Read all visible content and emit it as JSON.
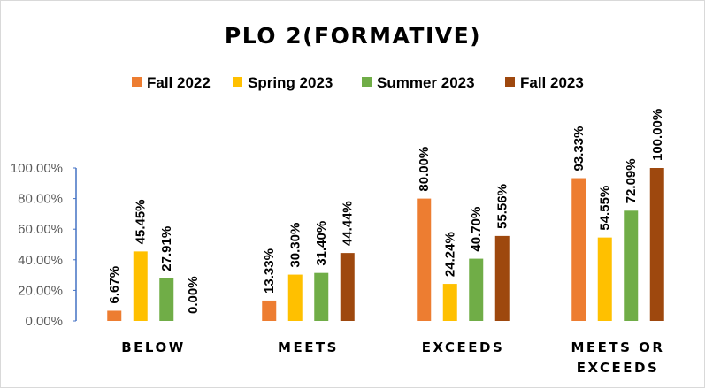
{
  "chart_data": {
    "type": "bar",
    "title": "PLO 2(FORMATIVE)",
    "categories": [
      [
        "BELOW"
      ],
      [
        "MEETS"
      ],
      [
        "EXCEEDS"
      ],
      [
        "MEETS OR",
        "EXCEEDS"
      ]
    ],
    "series": [
      {
        "name": "Fall 2022",
        "color": "#ED7D31",
        "values": [
          6.67,
          13.33,
          80.0,
          93.33
        ],
        "labels": [
          "6.67%",
          "13.33%",
          "80.00%",
          "93.33%"
        ]
      },
      {
        "name": "Spring 2023",
        "color": "#FFC000",
        "values": [
          45.45,
          30.3,
          24.24,
          54.55
        ],
        "labels": [
          "45.45%",
          "30.30%",
          "24.24%",
          "54.55%"
        ]
      },
      {
        "name": "Summer 2023",
        "color": "#70AD47",
        "values": [
          27.91,
          31.4,
          40.7,
          72.09
        ],
        "labels": [
          "27.91%",
          "31.40%",
          "40.70%",
          "72.09%"
        ]
      },
      {
        "name": "Fall 2023",
        "color": "#9E480E",
        "values": [
          0.0,
          44.44,
          55.56,
          100.0
        ],
        "labels": [
          "0.00%",
          "44.44%",
          "55.56%",
          "100.00%"
        ]
      }
    ],
    "yticks": [
      "0.00%",
      "20.00%",
      "40.00%",
      "60.00%",
      "80.00%",
      "100.00%"
    ],
    "ylim": [
      0,
      100
    ],
    "xlabel": "",
    "ylabel": "",
    "legend_position": "top",
    "grid": false,
    "axis_color": "#4472C4"
  }
}
